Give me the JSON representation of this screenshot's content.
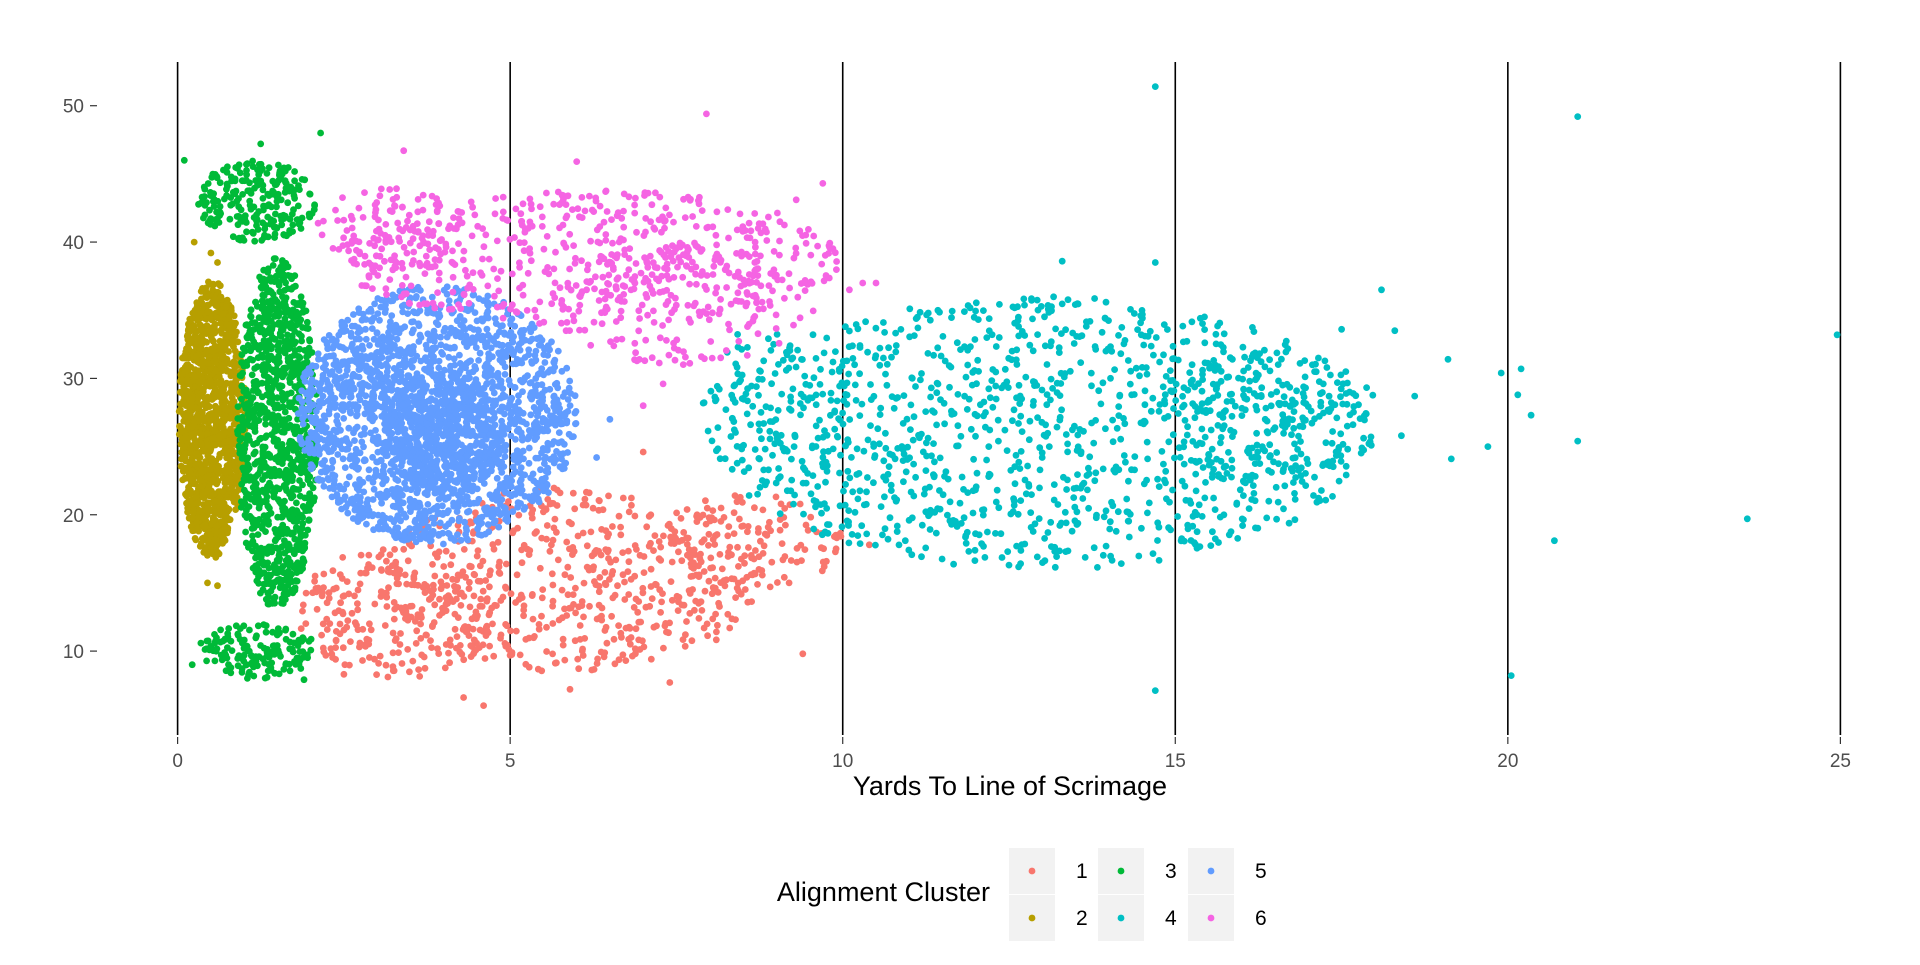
{
  "chart_data": {
    "type": "scatter",
    "title": "",
    "xlabel": "Yards To Line of Scrimage",
    "ylabel": "",
    "xlim": [
      -0.4,
      25.4
    ],
    "ylim": [
      3.7,
      53.5
    ],
    "x_ticks": [
      0,
      5,
      10,
      15,
      20,
      25
    ],
    "y_ticks": [
      10,
      20,
      30,
      40,
      50
    ],
    "x_tick_labels": [
      "0",
      "5",
      "10",
      "15",
      "20",
      "25"
    ],
    "y_tick_labels": [
      "10",
      "20",
      "30",
      "40",
      "50"
    ],
    "grid": false,
    "reference_lines_x": [
      0,
      5,
      10,
      15,
      20,
      25
    ],
    "legend": {
      "title": "Alignment Cluster",
      "position": "bottom",
      "entries": [
        "1",
        "2",
        "3",
        "4",
        "5",
        "6"
      ]
    },
    "series": [
      {
        "name": "1",
        "color": "#F8766D",
        "regions": [
          {
            "cx": 5.9,
            "cy": 15.2,
            "rx": 2.9,
            "ry": 6.8,
            "n": 520
          },
          {
            "cx": 3.3,
            "cy": 13.0,
            "rx": 1.5,
            "ry": 5.0,
            "n": 230
          },
          {
            "cx": 8.6,
            "cy": 18.0,
            "rx": 1.4,
            "ry": 3.5,
            "n": 130
          }
        ],
        "points": [
          [
            4.6,
            6.0
          ],
          [
            4.3,
            6.6
          ],
          [
            5.9,
            7.2
          ],
          [
            7.4,
            7.7
          ],
          [
            9.4,
            9.8
          ],
          [
            2.5,
            8.3
          ],
          [
            9.9,
            17.5
          ],
          [
            10.4,
            17.8
          ],
          [
            7.0,
            24.6
          ]
        ]
      },
      {
        "name": "2",
        "color": "#B79F00",
        "regions": [
          {
            "cx": 0.52,
            "cy": 27.0,
            "rx": 0.5,
            "ry": 10.2,
            "n": 1300
          }
        ],
        "points": [
          [
            0.5,
            39.2
          ],
          [
            0.25,
            40.0
          ],
          [
            0.6,
            38.5
          ],
          [
            0.45,
            15.0
          ],
          [
            0.6,
            14.8
          ]
        ]
      },
      {
        "name": "3",
        "color": "#00BA38",
        "regions": [
          {
            "cx": 1.5,
            "cy": 26.0,
            "rx": 0.6,
            "ry": 13.0,
            "n": 1050
          },
          {
            "cx": 1.2,
            "cy": 43.0,
            "rx": 0.9,
            "ry": 3.0,
            "n": 230
          },
          {
            "cx": 1.2,
            "cy": 10.0,
            "rx": 0.9,
            "ry": 2.0,
            "n": 150
          }
        ],
        "points": [
          [
            0.1,
            46.0
          ],
          [
            1.25,
            47.2
          ],
          [
            2.15,
            48.0
          ],
          [
            1.05,
            8.0
          ],
          [
            0.22,
            9.0
          ],
          [
            1.9,
            7.9
          ]
        ]
      },
      {
        "name": "4",
        "color": "#00BFC4",
        "regions": [
          {
            "cx": 13.0,
            "cy": 26.0,
            "rx": 5.0,
            "ry": 10.0,
            "n": 1150
          },
          {
            "cx": 16.5,
            "cy": 27.0,
            "rx": 1.6,
            "ry": 5.0,
            "n": 160
          },
          {
            "cx": 9.0,
            "cy": 28.0,
            "rx": 1.2,
            "ry": 6.0,
            "n": 60
          }
        ],
        "points": [
          [
            14.7,
            51.4
          ],
          [
            21.05,
            49.2
          ],
          [
            14.7,
            38.5
          ],
          [
            13.3,
            38.6
          ],
          [
            24.95,
            33.2
          ],
          [
            20.2,
            30.7
          ],
          [
            19.9,
            30.4
          ],
          [
            19.1,
            31.4
          ],
          [
            20.15,
            28.8
          ],
          [
            20.35,
            27.3
          ],
          [
            19.7,
            25.0
          ],
          [
            21.05,
            25.4
          ],
          [
            19.15,
            24.1
          ],
          [
            23.6,
            19.7
          ],
          [
            20.7,
            18.1
          ],
          [
            20.05,
            8.2
          ],
          [
            14.7,
            7.1
          ],
          [
            18.1,
            36.5
          ],
          [
            18.3,
            33.5
          ],
          [
            17.5,
            33.6
          ],
          [
            18.6,
            28.7
          ],
          [
            18.4,
            25.8
          ]
        ]
      },
      {
        "name": "5",
        "color": "#619CFF",
        "regions": [
          {
            "cx": 3.9,
            "cy": 27.3,
            "rx": 2.1,
            "ry": 9.5,
            "n": 1900
          },
          {
            "cx": 4.0,
            "cy": 26.0,
            "rx": 0.9,
            "ry": 4.5,
            "n": 500
          }
        ],
        "points": [
          [
            6.5,
            27.0
          ],
          [
            6.3,
            24.2
          ]
        ]
      },
      {
        "name": "6",
        "color": "#F564E3",
        "regions": [
          {
            "cx": 6.2,
            "cy": 38.8,
            "rx": 3.8,
            "ry": 5.0,
            "n": 520
          },
          {
            "cx": 7.6,
            "cy": 35.5,
            "rx": 2.0,
            "ry": 4.5,
            "n": 170
          },
          {
            "cx": 3.2,
            "cy": 41.0,
            "rx": 1.1,
            "ry": 3.0,
            "n": 80
          }
        ],
        "points": [
          [
            7.95,
            49.4
          ],
          [
            3.4,
            46.7
          ],
          [
            6.0,
            45.9
          ],
          [
            9.7,
            44.3
          ],
          [
            9.3,
            43.1
          ],
          [
            10.3,
            37.0
          ],
          [
            10.5,
            37.0
          ],
          [
            10.1,
            36.5
          ],
          [
            7.3,
            29.6
          ],
          [
            7.0,
            28.0
          ]
        ]
      }
    ]
  }
}
